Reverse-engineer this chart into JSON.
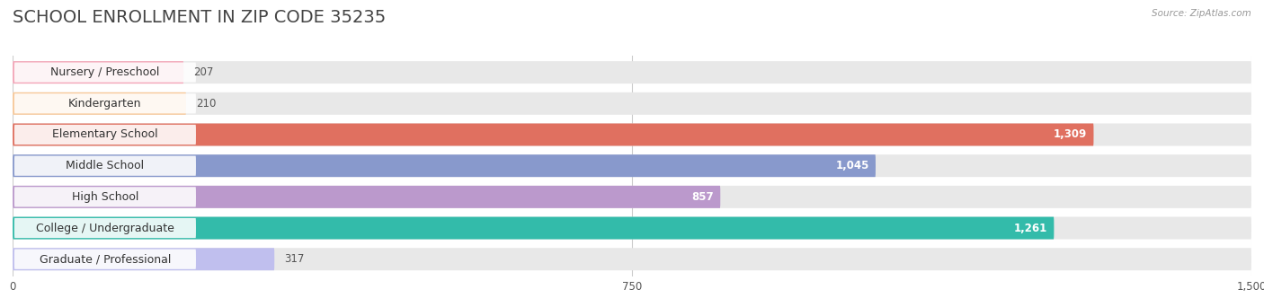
{
  "title": "SCHOOL ENROLLMENT IN ZIP CODE 35235",
  "source": "Source: ZipAtlas.com",
  "categories": [
    "Nursery / Preschool",
    "Kindergarten",
    "Elementary School",
    "Middle School",
    "High School",
    "College / Undergraduate",
    "Graduate / Professional"
  ],
  "values": [
    207,
    210,
    1309,
    1045,
    857,
    1261,
    317
  ],
  "bar_colors": [
    "#f4a7b9",
    "#f8c99a",
    "#e07060",
    "#8899cc",
    "#bb99cc",
    "#33bbaa",
    "#c0bfee"
  ],
  "bar_bg_color": "#e8e8e8",
  "xlim": [
    0,
    1500
  ],
  "xticks": [
    0,
    750,
    1500
  ],
  "title_fontsize": 14,
  "label_fontsize": 9,
  "value_fontsize": 8.5,
  "bar_height": 0.72,
  "background_color": "#ffffff",
  "title_color": "#444444",
  "source_color": "#999999"
}
